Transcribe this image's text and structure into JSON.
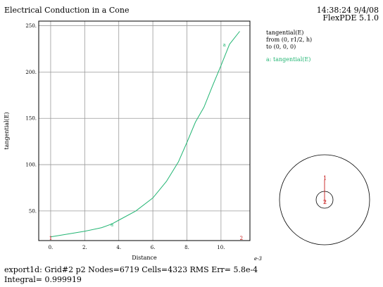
{
  "header": {
    "title": "Electrical Conduction in a Cone",
    "timestamp": "14:38:24 9/4/08",
    "version": "FlexPDE 5.1.0"
  },
  "legend": {
    "line1": "tangential(E)",
    "line2": "from (0, r1/2, h)",
    "line3": "to (0, 0, 0)",
    "series_label": "a: tangential(E)"
  },
  "footer": {
    "line1": "export1d:  Grid#2  p2  Nodes=6719 Cells=4323 RMS Err= 5.8e-4",
    "line2": "Integral=   0.999919"
  },
  "inset": {
    "marker1": "1",
    "marker2": "2"
  },
  "chart_data": {
    "type": "line",
    "title": "Electrical Conduction in a Cone",
    "xlabel": "Distance",
    "ylabel": "tangential(E)",
    "x_scale_label": "e-3",
    "xlim": [
      -0.7,
      11.7
    ],
    "ylim": [
      18,
      255
    ],
    "x_ticks": [
      0,
      2,
      4,
      6,
      8,
      10
    ],
    "x_tick_labels": [
      "0.",
      "2.",
      "4.",
      "6.",
      "8.",
      "10."
    ],
    "y_ticks": [
      50,
      100,
      150,
      200,
      250
    ],
    "y_tick_labels": [
      "50.",
      "100.",
      "150.",
      "200.",
      "250."
    ],
    "grid": true,
    "series": [
      {
        "name": "a: tangential(E)",
        "color": "#22b573",
        "x": [
          0,
          1,
          2,
          3,
          3.6,
          4,
          5,
          6,
          6.8,
          7.5,
          8,
          8.5,
          9,
          9.5,
          10,
          10.5,
          11.1
        ],
        "y": [
          22,
          25,
          28,
          32,
          36,
          40,
          50,
          64,
          82,
          103,
          124,
          146,
          162,
          185,
          207,
          230,
          244
        ]
      }
    ],
    "point_markers": [
      {
        "label": "1",
        "x": 0,
        "y": 18
      },
      {
        "label": "2",
        "x": 11.2,
        "y": 18
      },
      {
        "label": "a",
        "x": 3.6,
        "y": 36
      },
      {
        "label": "a",
        "x": 10.2,
        "y": 230
      }
    ]
  }
}
